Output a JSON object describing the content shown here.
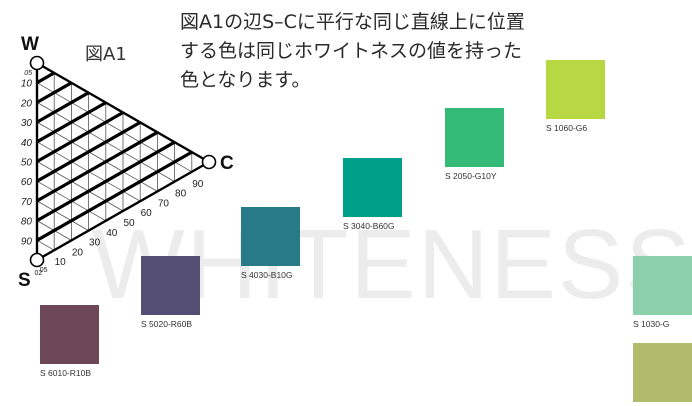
{
  "background_word": "WHITENESS",
  "caption": "図A1の辺S–Cに平行な同じ直線上に位置する色は同じホワイトネスの値を持った色となります。",
  "figure_label": "図A1",
  "triangle": {
    "corners": {
      "w": "W",
      "c": "C",
      "s": "S"
    },
    "whiteness_ticks": [
      "05",
      "10",
      "20",
      "30",
      "40",
      "50",
      "60",
      "70",
      "80",
      "90"
    ],
    "chromaticness_ticks": [
      "02",
      "05",
      "10",
      "20",
      "30",
      "40",
      "50",
      "60",
      "70",
      "80",
      "90"
    ],
    "highlighted_lines": "whiteness (parallel to S–C)"
  },
  "swatches": [
    {
      "code": "S 6010-R10B",
      "color": "#6e4756"
    },
    {
      "code": "S 5020-R60B",
      "color": "#544d74"
    },
    {
      "code": "S 4030-B10G",
      "color": "#287a88"
    },
    {
      "code": "S 3040-B60G",
      "color": "#009f8c"
    },
    {
      "code": "S 2050-G10Y",
      "color": "#34b977"
    },
    {
      "code": "S 1060-G6",
      "color": "#b7d743"
    },
    {
      "code": "S 1030-G",
      "color": "#8ccfab"
    },
    {
      "code": "",
      "color": "#b0bc6b"
    }
  ]
}
